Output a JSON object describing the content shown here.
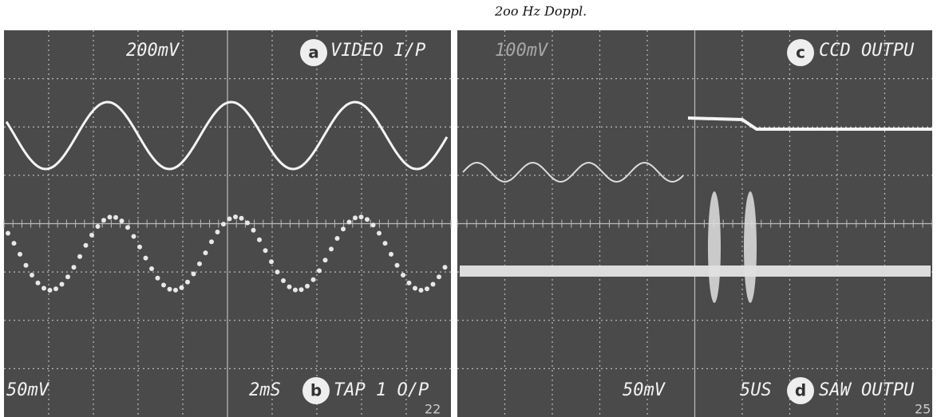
{
  "note": "2oo Hz Doppl.",
  "panels": [
    {
      "top_left": "200mV",
      "badge_top": "a",
      "top_right": "VIDEO I/P",
      "bottom_left": "50mV",
      "bottom_time": "2mS",
      "badge_bottom": "b",
      "bottom_right": "TAP 1 O/P",
      "page_number": "22"
    },
    {
      "top_left": "100mV",
      "badge_top": "c",
      "top_right": "CCD OUTPU",
      "bottom_left": "50mV",
      "bottom_time": "5US",
      "badge_bottom": "d",
      "bottom_right": "SAW OUTPU",
      "page_number": "25"
    }
  ]
}
